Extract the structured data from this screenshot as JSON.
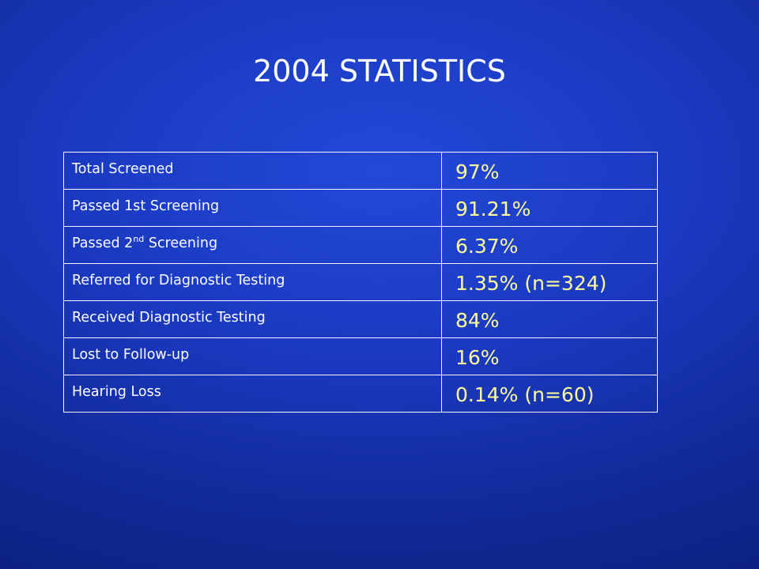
{
  "slide": {
    "title": "2004 STATISTICS",
    "colors": {
      "background": "#1a39c0",
      "title_text": "#ffffff",
      "label_text": "#ffffff",
      "value_text": "#ffff99",
      "table_border": "#ffffff"
    }
  },
  "table": {
    "rows": [
      {
        "label": "Total  Screened",
        "value": "97%"
      },
      {
        "label_prefix": "Passed 1st Screening",
        "value": "91.21%"
      },
      {
        "label_prefix": "Passed 2",
        "label_sup": "nd",
        "label_suffix": " Screening",
        "value": "6.37%"
      },
      {
        "label": "Referred for Diagnostic Testing",
        "value": "1.35% (n=324)"
      },
      {
        "label": "Received Diagnostic Testing",
        "value": "84%"
      },
      {
        "label": "Lost to Follow-up",
        "value": "16%"
      },
      {
        "label": "Hearing Loss",
        "value": "0.14% (n=60)"
      }
    ]
  }
}
